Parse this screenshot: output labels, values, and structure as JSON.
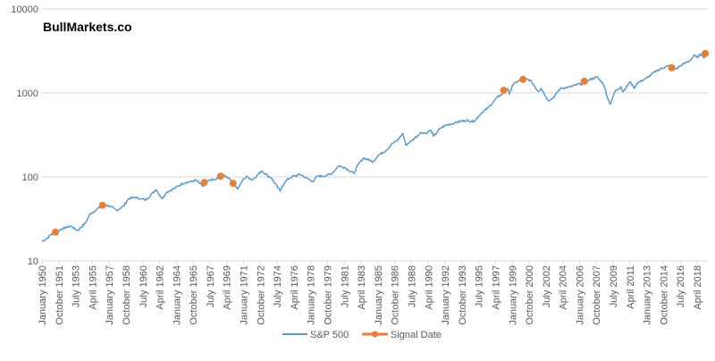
{
  "watermark": "BullMarkets.co",
  "chart_data": {
    "type": "line",
    "title": "",
    "xlabel": "",
    "ylabel": "",
    "y_scale": "log",
    "ylim": [
      10,
      10000
    ],
    "y_ticks": [
      "10",
      "100",
      "1000",
      "10000"
    ],
    "grid": true,
    "legend": "bottom",
    "x_tick_labels": [
      "January 1950",
      "October 1951",
      "July 1953",
      "April 1955",
      "January 1957",
      "October 1958",
      "July 1960",
      "April 1962",
      "January 1964",
      "October 1965",
      "July 1967",
      "April 1969",
      "January 1971",
      "October 1972",
      "July 1974",
      "April 1976",
      "January 1978",
      "October 1979",
      "July 1981",
      "April 1983",
      "January 1985",
      "October 1986",
      "July 1988",
      "April 1990",
      "January 1992",
      "October 1993",
      "July 1995",
      "April 1997",
      "January 1999",
      "October 2000",
      "July 2002",
      "April 2004",
      "January 2006",
      "October 2007",
      "July 2009",
      "April 2011",
      "January 2013",
      "October 2014",
      "July 2016",
      "April 2018"
    ],
    "series": [
      {
        "name": "S&P 500",
        "color": "#5B9BD5",
        "x": [
          1950.0,
          1950.5,
          1951.0,
          1951.5,
          1952.0,
          1952.5,
          1953.0,
          1953.7,
          1954.5,
          1955.0,
          1955.7,
          1956.5,
          1957.0,
          1957.8,
          1958.5,
          1959.0,
          1959.7,
          1960.3,
          1960.8,
          1961.5,
          1961.9,
          1962.5,
          1963.0,
          1963.8,
          1964.5,
          1965.0,
          1965.6,
          1966.0,
          1966.8,
          1967.5,
          1968.0,
          1968.9,
          1969.5,
          1970.4,
          1971.0,
          1971.4,
          1971.9,
          1972.9,
          1973.5,
          1973.9,
          1974.8,
          1975.0,
          1975.5,
          1976.0,
          1976.9,
          1977.5,
          1978.2,
          1978.7,
          1979.5,
          1980.2,
          1980.9,
          1981.5,
          1982.5,
          1982.9,
          1983.5,
          1984.5,
          1985.0,
          1985.9,
          1986.5,
          1987.0,
          1987.6,
          1987.9,
          1988.5,
          1989.5,
          1990.0,
          1990.5,
          1990.8,
          1991.5,
          1992.0,
          1993.0,
          1994.0,
          1995.0,
          1995.8,
          1996.5,
          1997.0,
          1997.5,
          1998.0,
          1998.5,
          1998.7,
          1999.0,
          1999.5,
          2000.2,
          2000.7,
          2001.0,
          2001.7,
          2002.0,
          2002.7,
          2003.2,
          2004.0,
          2005.0,
          2006.0,
          2006.5,
          2007.0,
          2007.8,
          2008.5,
          2008.9,
          2009.2,
          2009.7,
          2010.3,
          2010.5,
          2011.3,
          2011.7,
          2012.0,
          2013.0,
          2014.0,
          2015.0,
          2015.4,
          2015.7,
          2016.1,
          2016.5,
          2017.0,
          2017.5,
          2018.0,
          2018.2,
          2018.7,
          2018.9,
          2019.0,
          2019.2
        ],
        "y": [
          17,
          18.5,
          21,
          21.5,
          24,
          25,
          26,
          23,
          28,
          36,
          41,
          47,
          45,
          40,
          45,
          55,
          57,
          55,
          53,
          64,
          71,
          55,
          66,
          73,
          82,
          86,
          88,
          92,
          77,
          93,
          92,
          104,
          97,
          72,
          95,
          101,
          92,
          118,
          104,
          97,
          68,
          77,
          92,
          100,
          107,
          98,
          88,
          102,
          103,
          110,
          135,
          130,
          110,
          139,
          168,
          152,
          180,
          210,
          250,
          270,
          330,
          240,
          270,
          340,
          330,
          360,
          305,
          380,
          410,
          440,
          470,
          460,
          580,
          670,
          780,
          900,
          980,
          1130,
          960,
          1230,
          1370,
          1480,
          1440,
          1360,
          1040,
          1140,
          815,
          860,
          1130,
          1180,
          1280,
          1270,
          1430,
          1550,
          1280,
          890,
          735,
          1050,
          1190,
          1030,
          1360,
          1130,
          1310,
          1500,
          1830,
          2060,
          2100,
          1970,
          1940,
          2100,
          2280,
          2420,
          2820,
          2640,
          2900,
          2700,
          2650,
          2950
        ]
      },
      {
        "name": "Signal Date",
        "color": "#ED7D31",
        "x": [
          1951.4,
          1956.3,
          1966.9,
          1968.6,
          1969.9,
          1998.1,
          2000.1,
          2006.5,
          2015.6,
          2019.1
        ],
        "y": [
          22,
          46,
          86,
          102,
          84,
          1074,
          1450,
          1380,
          1990,
          2950
        ]
      }
    ]
  }
}
